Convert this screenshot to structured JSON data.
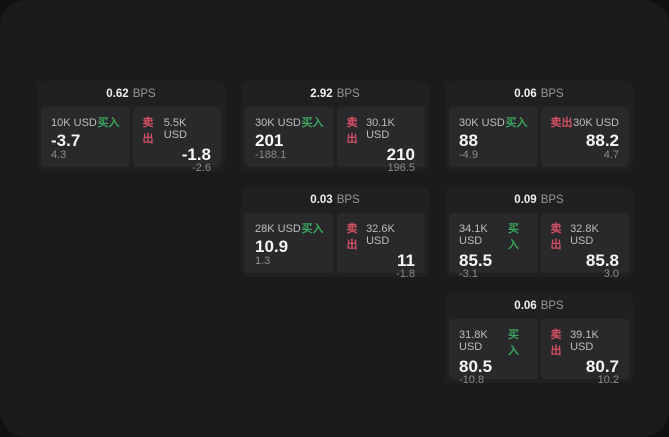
{
  "labels": {
    "buy": "买入",
    "sell": "卖出",
    "bps_unit": "BPS"
  },
  "colors": {
    "buy_green": "#3ca45f",
    "sell_red": "#d25064",
    "surface": "#1b1b1d",
    "card": "#202022",
    "panel": "#29292b"
  },
  "cards": [
    {
      "row": 1,
      "col": 1,
      "bps": "0.62",
      "buy": {
        "notional": "10K USD",
        "price": "-3.7",
        "delta": "4.3"
      },
      "sell": {
        "notional": "5.5K USD",
        "price": "-1.8",
        "delta": "-2.6"
      }
    },
    {
      "row": 1,
      "col": 2,
      "bps": "2.92",
      "buy": {
        "notional": "30K USD",
        "price": "201",
        "delta": "-188.1"
      },
      "sell": {
        "notional": "30.1K USD",
        "price": "210",
        "delta": "196.5"
      }
    },
    {
      "row": 1,
      "col": 3,
      "bps": "0.06",
      "buy": {
        "notional": "30K USD",
        "price": "88",
        "delta": "-4.9"
      },
      "sell": {
        "notional": "30K USD",
        "price": "88.2",
        "delta": "4.7"
      }
    },
    {
      "row": 2,
      "col": 2,
      "bps": "0.03",
      "buy": {
        "notional": "28K USD",
        "price": "10.9",
        "delta": "1.3"
      },
      "sell": {
        "notional": "32.6K USD",
        "price": "11",
        "delta": "-1.8"
      }
    },
    {
      "row": 2,
      "col": 3,
      "bps": "0.09",
      "buy": {
        "notional": "34.1K USD",
        "price": "85.5",
        "delta": "-3.1"
      },
      "sell": {
        "notional": "32.8K USD",
        "price": "85.8",
        "delta": "3.0"
      }
    },
    {
      "row": 3,
      "col": 3,
      "bps": "0.06",
      "buy": {
        "notional": "31.8K USD",
        "price": "80.5",
        "delta": "-10.8"
      },
      "sell": {
        "notional": "39.1K USD",
        "price": "80.7",
        "delta": "10.2"
      }
    }
  ]
}
